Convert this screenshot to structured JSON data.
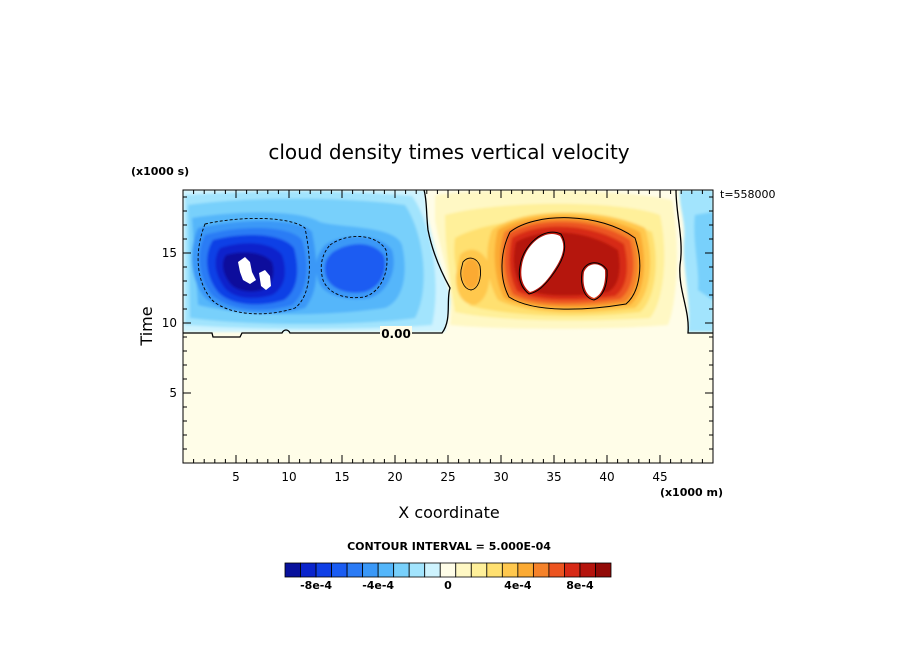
{
  "chart_data": {
    "type": "heatmap",
    "title": "cloud density times vertical velocity",
    "xlabel": "X coordinate",
    "ylabel": "Time",
    "x_units": "(x1000 m)",
    "y_units": "(x1000 s)",
    "xlim": [
      0,
      50
    ],
    "ylim": [
      0,
      19.5
    ],
    "x_ticks": [
      "5",
      "10",
      "15",
      "20",
      "25",
      "30",
      "35",
      "40",
      "45"
    ],
    "y_ticks": [
      "5",
      "10",
      "15"
    ],
    "time_stamp": "t=558000",
    "contour_label": "0.00",
    "contour_interval": "CONTOUR INTERVAL = 5.000E-04",
    "colorbar": {
      "ticks": [
        "-8e-4",
        "-4e-4",
        "0",
        "4e-4",
        "8e-4"
      ],
      "colors": [
        "#08119c",
        "#0a24cc",
        "#0f3fe6",
        "#1a5cf2",
        "#2b7bf5",
        "#3a98f7",
        "#54b6fa",
        "#78d0fb",
        "#a2e4fd",
        "#cef3fe",
        "#fffde8",
        "#fff8c4",
        "#fff09a",
        "#ffe070",
        "#ffc84e",
        "#fbaa33",
        "#f5822a",
        "#ec5420",
        "#d72a16",
        "#b5140d",
        "#920a07"
      ]
    },
    "features": [
      {
        "name": "negative core",
        "x": 6.5,
        "y": 14.2,
        "value": -0.0009
      },
      {
        "name": "negative secondary",
        "x": 17,
        "y": 14.3,
        "value": -0.0005
      },
      {
        "name": "positive core",
        "x": 35,
        "y": 14.5,
        "value": 0.00095
      },
      {
        "name": "positive secondary",
        "x": 39,
        "y": 13.5,
        "value": 0.0009
      },
      {
        "name": "positive side",
        "x": 27.2,
        "y": 13.5,
        "value": 0.0003
      }
    ],
    "grid": false
  }
}
